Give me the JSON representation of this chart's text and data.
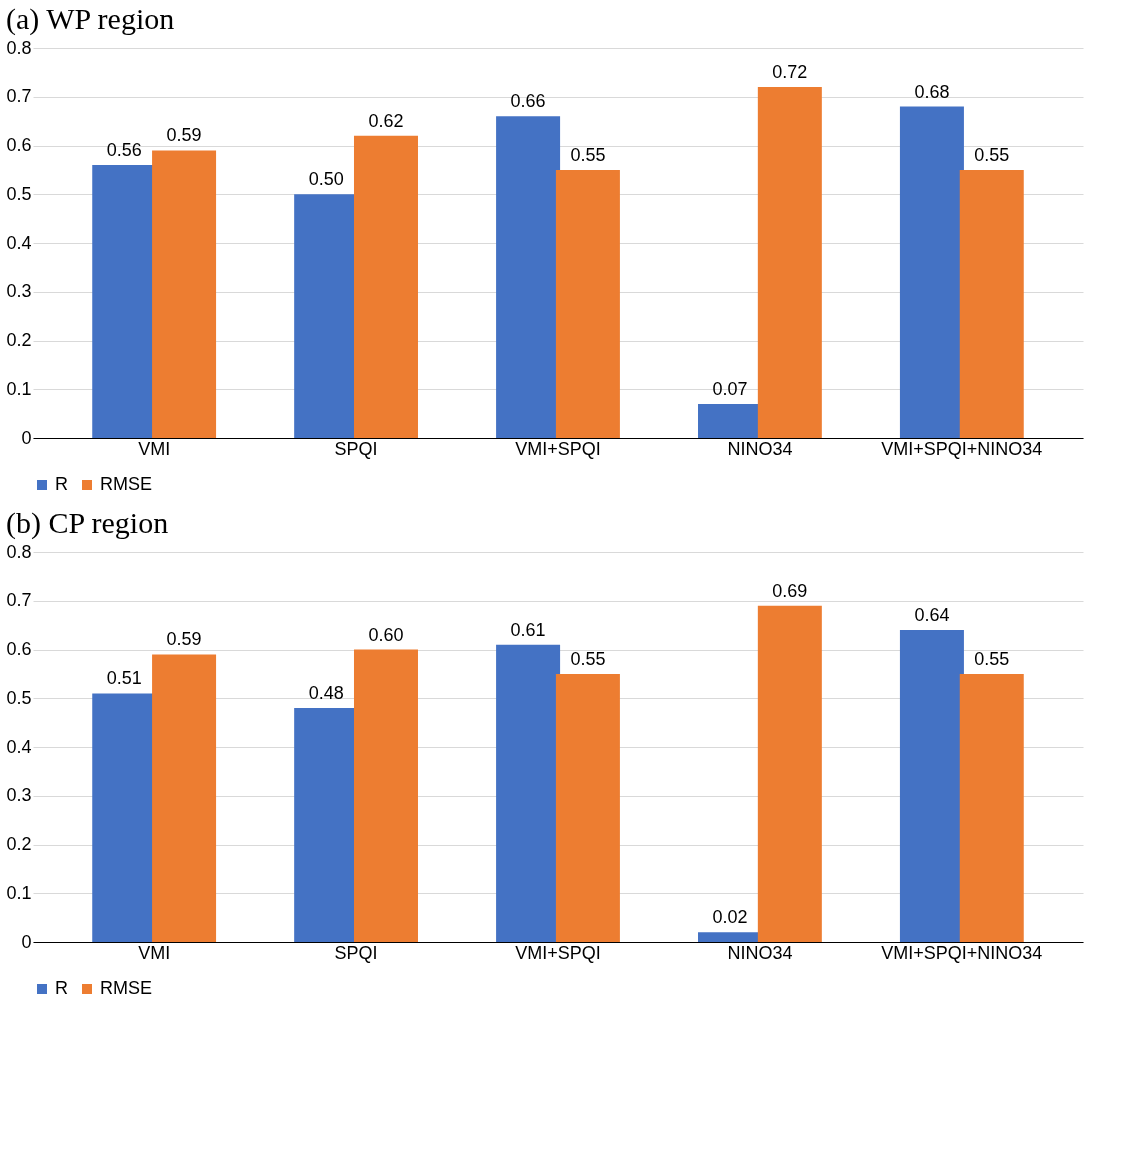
{
  "chart_data": [
    {
      "type": "bar",
      "title": "(a) WP region",
      "categories": [
        "VMI",
        "SPQI",
        "VMI+SPQI",
        "NINO34",
        "VMI+SPQI+NINO34"
      ],
      "series": [
        {
          "name": "R",
          "color": "#4472c4",
          "values": [
            0.56,
            0.5,
            0.66,
            0.07,
            0.68
          ],
          "value_labels": [
            "0.56",
            "0.50",
            "0.66",
            "0.07",
            "0.68"
          ]
        },
        {
          "name": "RMSE",
          "color": "#ed7d31",
          "values": [
            0.59,
            0.62,
            0.55,
            0.72,
            0.55
          ],
          "value_labels": [
            "0.59",
            "0.62",
            "0.55",
            "0.72",
            "0.55"
          ]
        }
      ],
      "ylim": [
        0,
        0.8
      ],
      "yticks": [
        0,
        0.1,
        0.2,
        0.3,
        0.4,
        0.5,
        0.6,
        0.7,
        0.8
      ],
      "grid": "y",
      "legend": "bottom"
    },
    {
      "type": "bar",
      "title": "(b) CP region",
      "categories": [
        "VMI",
        "SPQI",
        "VMI+SPQI",
        "NINO34",
        "VMI+SPQI+NINO34"
      ],
      "series": [
        {
          "name": "R",
          "color": "#4472c4",
          "values": [
            0.51,
            0.48,
            0.61,
            0.02,
            0.64
          ],
          "value_labels": [
            "0.51",
            "0.48",
            "0.61",
            "0.02",
            "0.64"
          ]
        },
        {
          "name": "RMSE",
          "color": "#ed7d31",
          "values": [
            0.59,
            0.6,
            0.55,
            0.69,
            0.55
          ],
          "value_labels": [
            "0.59",
            "0.60",
            "0.55",
            "0.69",
            "0.55"
          ]
        }
      ],
      "ylim": [
        0,
        0.8
      ],
      "yticks": [
        0,
        0.1,
        0.2,
        0.3,
        0.4,
        0.5,
        0.6,
        0.7,
        0.8
      ],
      "grid": "y",
      "legend": "bottom"
    }
  ]
}
